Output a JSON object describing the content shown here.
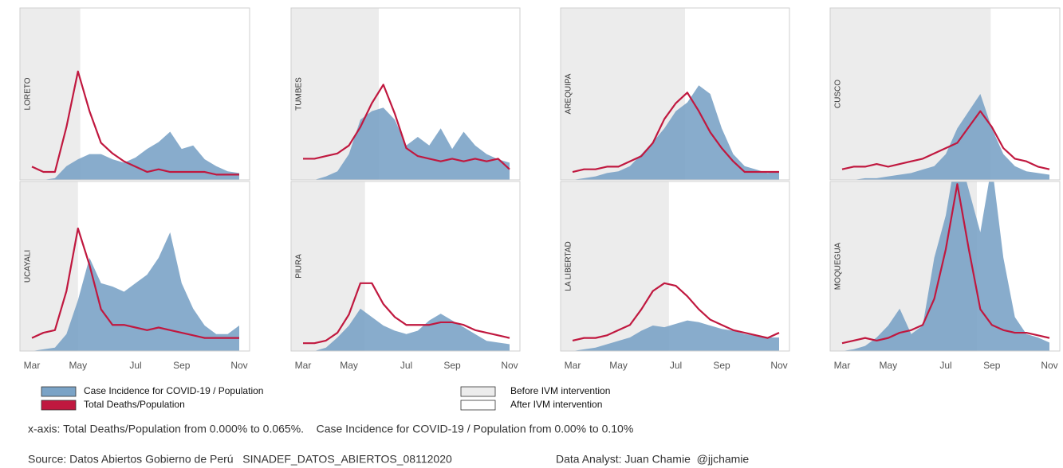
{
  "chart_data": {
    "type": "area",
    "categories": [
      "Mar",
      null,
      null,
      null,
      "May",
      null,
      null,
      null,
      null,
      "Jul",
      null,
      null,
      null,
      "Sep",
      null,
      null,
      null,
      null,
      "Nov"
    ],
    "ylim_deaths": [
      0,
      0.065
    ],
    "ylim_cases": [
      0,
      0.1
    ],
    "series": [
      {
        "name": "Case Incidence for COVID-19 / Population",
        "color": "#7ba3c6"
      },
      {
        "name": "Total Deaths/Population",
        "color": "#c0183f"
      }
    ],
    "phases": [
      {
        "name": "Before IVM intervention",
        "color": "#ececec"
      },
      {
        "name": "After IVM intervention",
        "color": "#ffffff"
      }
    ],
    "note": "x-axis: Total Deaths/Population from 0.000% to 0.065%.    Case Incidence for COVID-19 / Population from 0.00% to 0.10%",
    "source": "Source: Datos Abiertos Gobierno de Perú   SINADEF_DATOS_ABIERTOS_08112020",
    "analyst": "Data Analyst: Juan Chamie  @jjchamie",
    "panels": [
      {
        "name": "LORETO",
        "before_ivm_end": 4.2,
        "cases": [
          0,
          0,
          0.001,
          0.008,
          0.012,
          0.015,
          0.015,
          0.012,
          0.01,
          0.013,
          0.018,
          0.022,
          0.028,
          0.018,
          0.02,
          0.012,
          0.008,
          0.005,
          0.004
        ],
        "deaths": [
          0.005,
          0.003,
          0.003,
          0.02,
          0.041,
          0.026,
          0.014,
          0.01,
          0.007,
          0.005,
          0.003,
          0.004,
          0.003,
          0.003,
          0.003,
          0.003,
          0.002,
          0.002,
          0.002
        ]
      },
      {
        "name": "TUMBES",
        "before_ivm_end": 6.6,
        "cases": [
          0,
          0,
          0.002,
          0.005,
          0.015,
          0.035,
          0.04,
          0.042,
          0.035,
          0.02,
          0.025,
          0.02,
          0.03,
          0.018,
          0.028,
          0.02,
          0.015,
          0.012,
          0.01
        ],
        "deaths": [
          0.008,
          0.008,
          0.009,
          0.01,
          0.013,
          0.02,
          0.029,
          0.036,
          0.025,
          0.012,
          0.009,
          0.008,
          0.007,
          0.008,
          0.007,
          0.008,
          0.007,
          0.008,
          0.004
        ]
      },
      {
        "name": "AREQUIPA",
        "before_ivm_end": 9.8,
        "cases": [
          0,
          0.001,
          0.002,
          0.004,
          0.005,
          0.008,
          0.015,
          0.022,
          0.03,
          0.04,
          0.045,
          0.055,
          0.05,
          0.03,
          0.015,
          0.008,
          0.006,
          0.004,
          0.005
        ],
        "deaths": [
          0.003,
          0.004,
          0.004,
          0.005,
          0.005,
          0.007,
          0.009,
          0.014,
          0.023,
          0.029,
          0.033,
          0.026,
          0.018,
          0.012,
          0.007,
          0.003,
          0.003,
          0.003,
          0.003
        ]
      },
      {
        "name": "CUSCO",
        "before_ivm_end": 12.9,
        "cases": [
          0,
          0,
          0.001,
          0.001,
          0.002,
          0.003,
          0.004,
          0.006,
          0.008,
          0.015,
          0.03,
          0.04,
          0.05,
          0.03,
          0.015,
          0.008,
          0.005,
          0.004,
          0.003
        ],
        "deaths": [
          0.004,
          0.005,
          0.005,
          0.006,
          0.005,
          0.006,
          0.007,
          0.008,
          0.01,
          0.012,
          0.014,
          0.02,
          0.026,
          0.02,
          0.012,
          0.008,
          0.007,
          0.005,
          0.004
        ]
      },
      {
        "name": "UCAYALI",
        "before_ivm_end": 4.0,
        "cases": [
          0,
          0.001,
          0.002,
          0.01,
          0.03,
          0.055,
          0.04,
          0.038,
          0.035,
          0.04,
          0.045,
          0.055,
          0.07,
          0.04,
          0.025,
          0.015,
          0.01,
          0.01,
          0.015
        ],
        "deaths": [
          0.005,
          0.007,
          0.008,
          0.023,
          0.047,
          0.033,
          0.016,
          0.01,
          0.01,
          0.009,
          0.008,
          0.009,
          0.008,
          0.007,
          0.006,
          0.005,
          0.005,
          0.005,
          0.005
        ]
      },
      {
        "name": "PIURA",
        "before_ivm_end": 5.4,
        "cases": [
          0,
          0,
          0.002,
          0.008,
          0.015,
          0.025,
          0.02,
          0.015,
          0.012,
          0.01,
          0.012,
          0.018,
          0.022,
          0.018,
          0.014,
          0.01,
          0.006,
          0.005,
          0.004
        ],
        "deaths": [
          0.003,
          0.003,
          0.004,
          0.007,
          0.014,
          0.026,
          0.026,
          0.018,
          0.013,
          0.01,
          0.01,
          0.01,
          0.011,
          0.011,
          0.01,
          0.008,
          0.007,
          0.006,
          0.005
        ]
      },
      {
        "name": "LA LIBERTAD",
        "before_ivm_end": 8.4,
        "cases": [
          0,
          0.001,
          0.002,
          0.004,
          0.006,
          0.008,
          0.012,
          0.015,
          0.014,
          0.016,
          0.018,
          0.017,
          0.015,
          0.013,
          0.012,
          0.01,
          0.009,
          0.008,
          0.008
        ],
        "deaths": [
          0.004,
          0.005,
          0.005,
          0.006,
          0.008,
          0.01,
          0.016,
          0.023,
          0.026,
          0.025,
          0.021,
          0.016,
          0.012,
          0.01,
          0.008,
          0.007,
          0.006,
          0.005,
          0.007
        ]
      },
      {
        "name": "MOQUEGUA",
        "before_ivm_end": 11.7,
        "cases": [
          0,
          0.001,
          0.003,
          0.008,
          0.015,
          0.025,
          0.01,
          0.015,
          0.055,
          0.08,
          0.12,
          0.095,
          0.07,
          0.11,
          0.055,
          0.02,
          0.01,
          0.008,
          0.005
        ],
        "deaths": [
          0.003,
          0.004,
          0.005,
          0.004,
          0.005,
          0.007,
          0.008,
          0.01,
          0.02,
          0.039,
          0.064,
          0.039,
          0.016,
          0.01,
          0.008,
          0.007,
          0.007,
          0.006,
          0.005
        ]
      }
    ]
  }
}
